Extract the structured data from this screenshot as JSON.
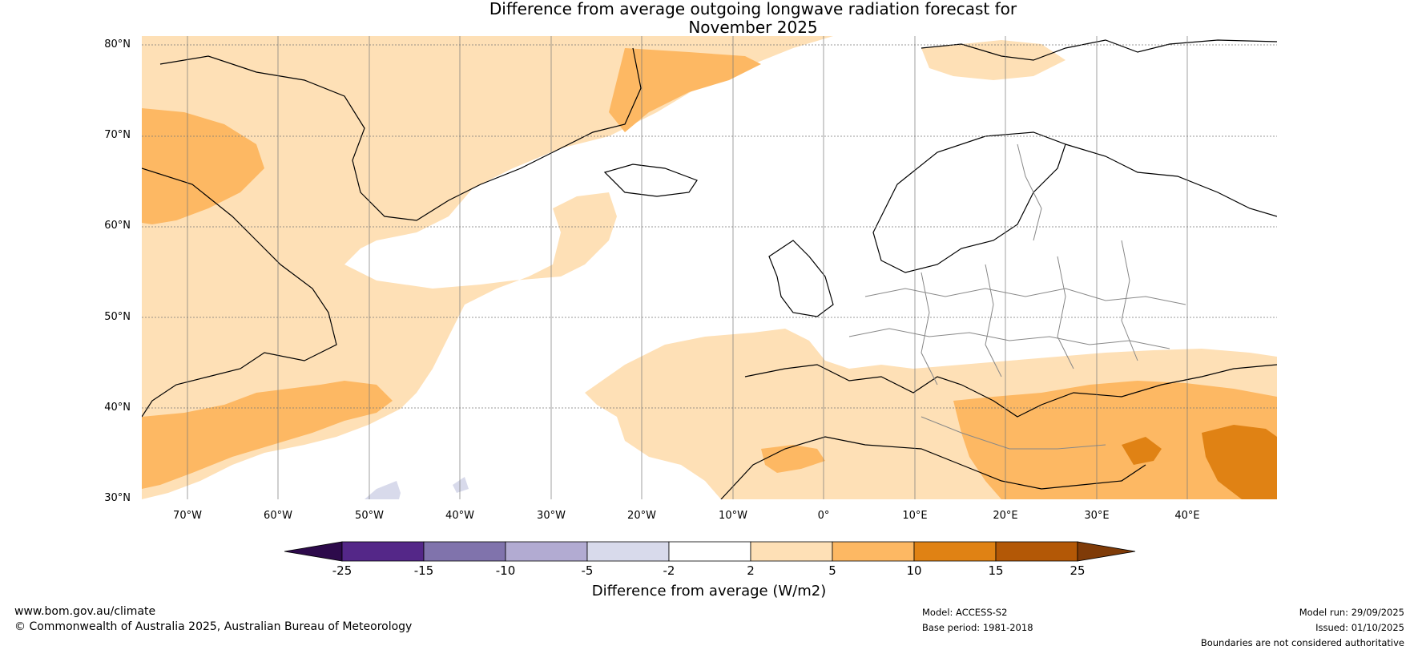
{
  "title": {
    "line1": "Difference from average outgoing longwave radiation forecast for",
    "line2": "November 2025"
  },
  "axes": {
    "lat_labels": [
      "80°N",
      "70°N",
      "60°N",
      "50°N",
      "40°N",
      "30°N"
    ],
    "lon_labels": [
      "70°W",
      "60°W",
      "50°W",
      "40°W",
      "30°W",
      "20°W",
      "10°W",
      "0°",
      "10°E",
      "20°E",
      "30°E",
      "40°E"
    ]
  },
  "colorbar": {
    "ticks": [
      "-25",
      "-15",
      "-10",
      "-5",
      "-2",
      "2",
      "5",
      "10",
      "15",
      "25"
    ],
    "colors": [
      "#2d0a4b",
      "#542788",
      "#8073ac",
      "#b2abd2",
      "#d8daeb",
      "#ffffff",
      "#fee0b6",
      "#fdb863",
      "#e08214",
      "#b35806",
      "#7f3b08"
    ],
    "label": "Difference from average (W/m2)"
  },
  "footer": {
    "website": "www.bom.gov.au/climate",
    "copyright": "© Commonwealth of Australia 2025, Australian Bureau of Meteorology",
    "model": "Model: ACCESS-S2",
    "base_period": "Base period: 1981-2018",
    "model_run": "Model run: 29/09/2025",
    "issued": "Issued: 01/10/2025",
    "disclaimer": "Boundaries are not considered authoritative"
  }
}
